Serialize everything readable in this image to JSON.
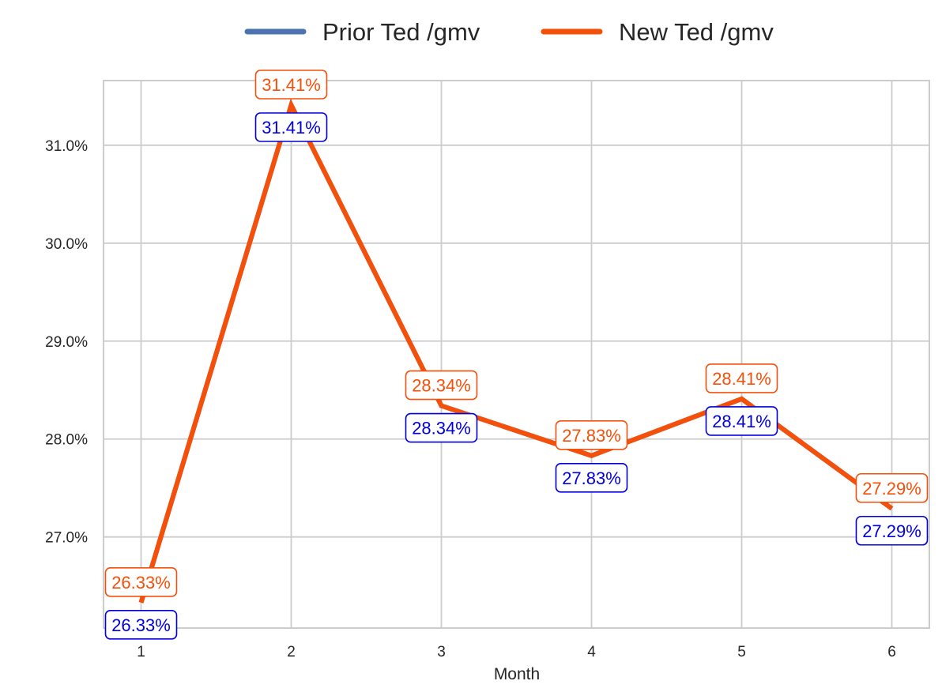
{
  "chart_data": {
    "type": "line",
    "title": "",
    "xlabel": "Month",
    "ylabel": "",
    "x": [
      1,
      2,
      3,
      4,
      5,
      6
    ],
    "x_ticks": [
      "1",
      "2",
      "3",
      "4",
      "5",
      "6"
    ],
    "xlim": [
      0.75,
      6.25
    ],
    "ylim": [
      26.07,
      31.66
    ],
    "y_ticks": [
      27.0,
      28.0,
      29.0,
      30.0,
      31.0
    ],
    "y_tick_labels": [
      "27.0%",
      "28.0%",
      "29.0%",
      "30.0%",
      "31.0%"
    ],
    "grid": true,
    "legend_position": "top-center",
    "series": [
      {
        "name": "Prior Ted /gmv",
        "color": "#4c72b0",
        "label_color": "#0000dd",
        "label_placement": "below",
        "values": [
          26.33,
          31.41,
          28.34,
          27.83,
          28.41,
          27.29
        ],
        "labels": [
          "26.33%",
          "31.41%",
          "28.34%",
          "27.83%",
          "28.41%",
          "27.29%"
        ]
      },
      {
        "name": "New Ted /gmv",
        "color": "#f5500a",
        "label_color": "#f5500a",
        "label_placement": "above",
        "values": [
          26.33,
          31.41,
          28.34,
          27.83,
          28.41,
          27.29
        ],
        "labels": [
          "26.33%",
          "31.41%",
          "28.34%",
          "27.83%",
          "28.41%",
          "27.29%"
        ]
      }
    ]
  }
}
